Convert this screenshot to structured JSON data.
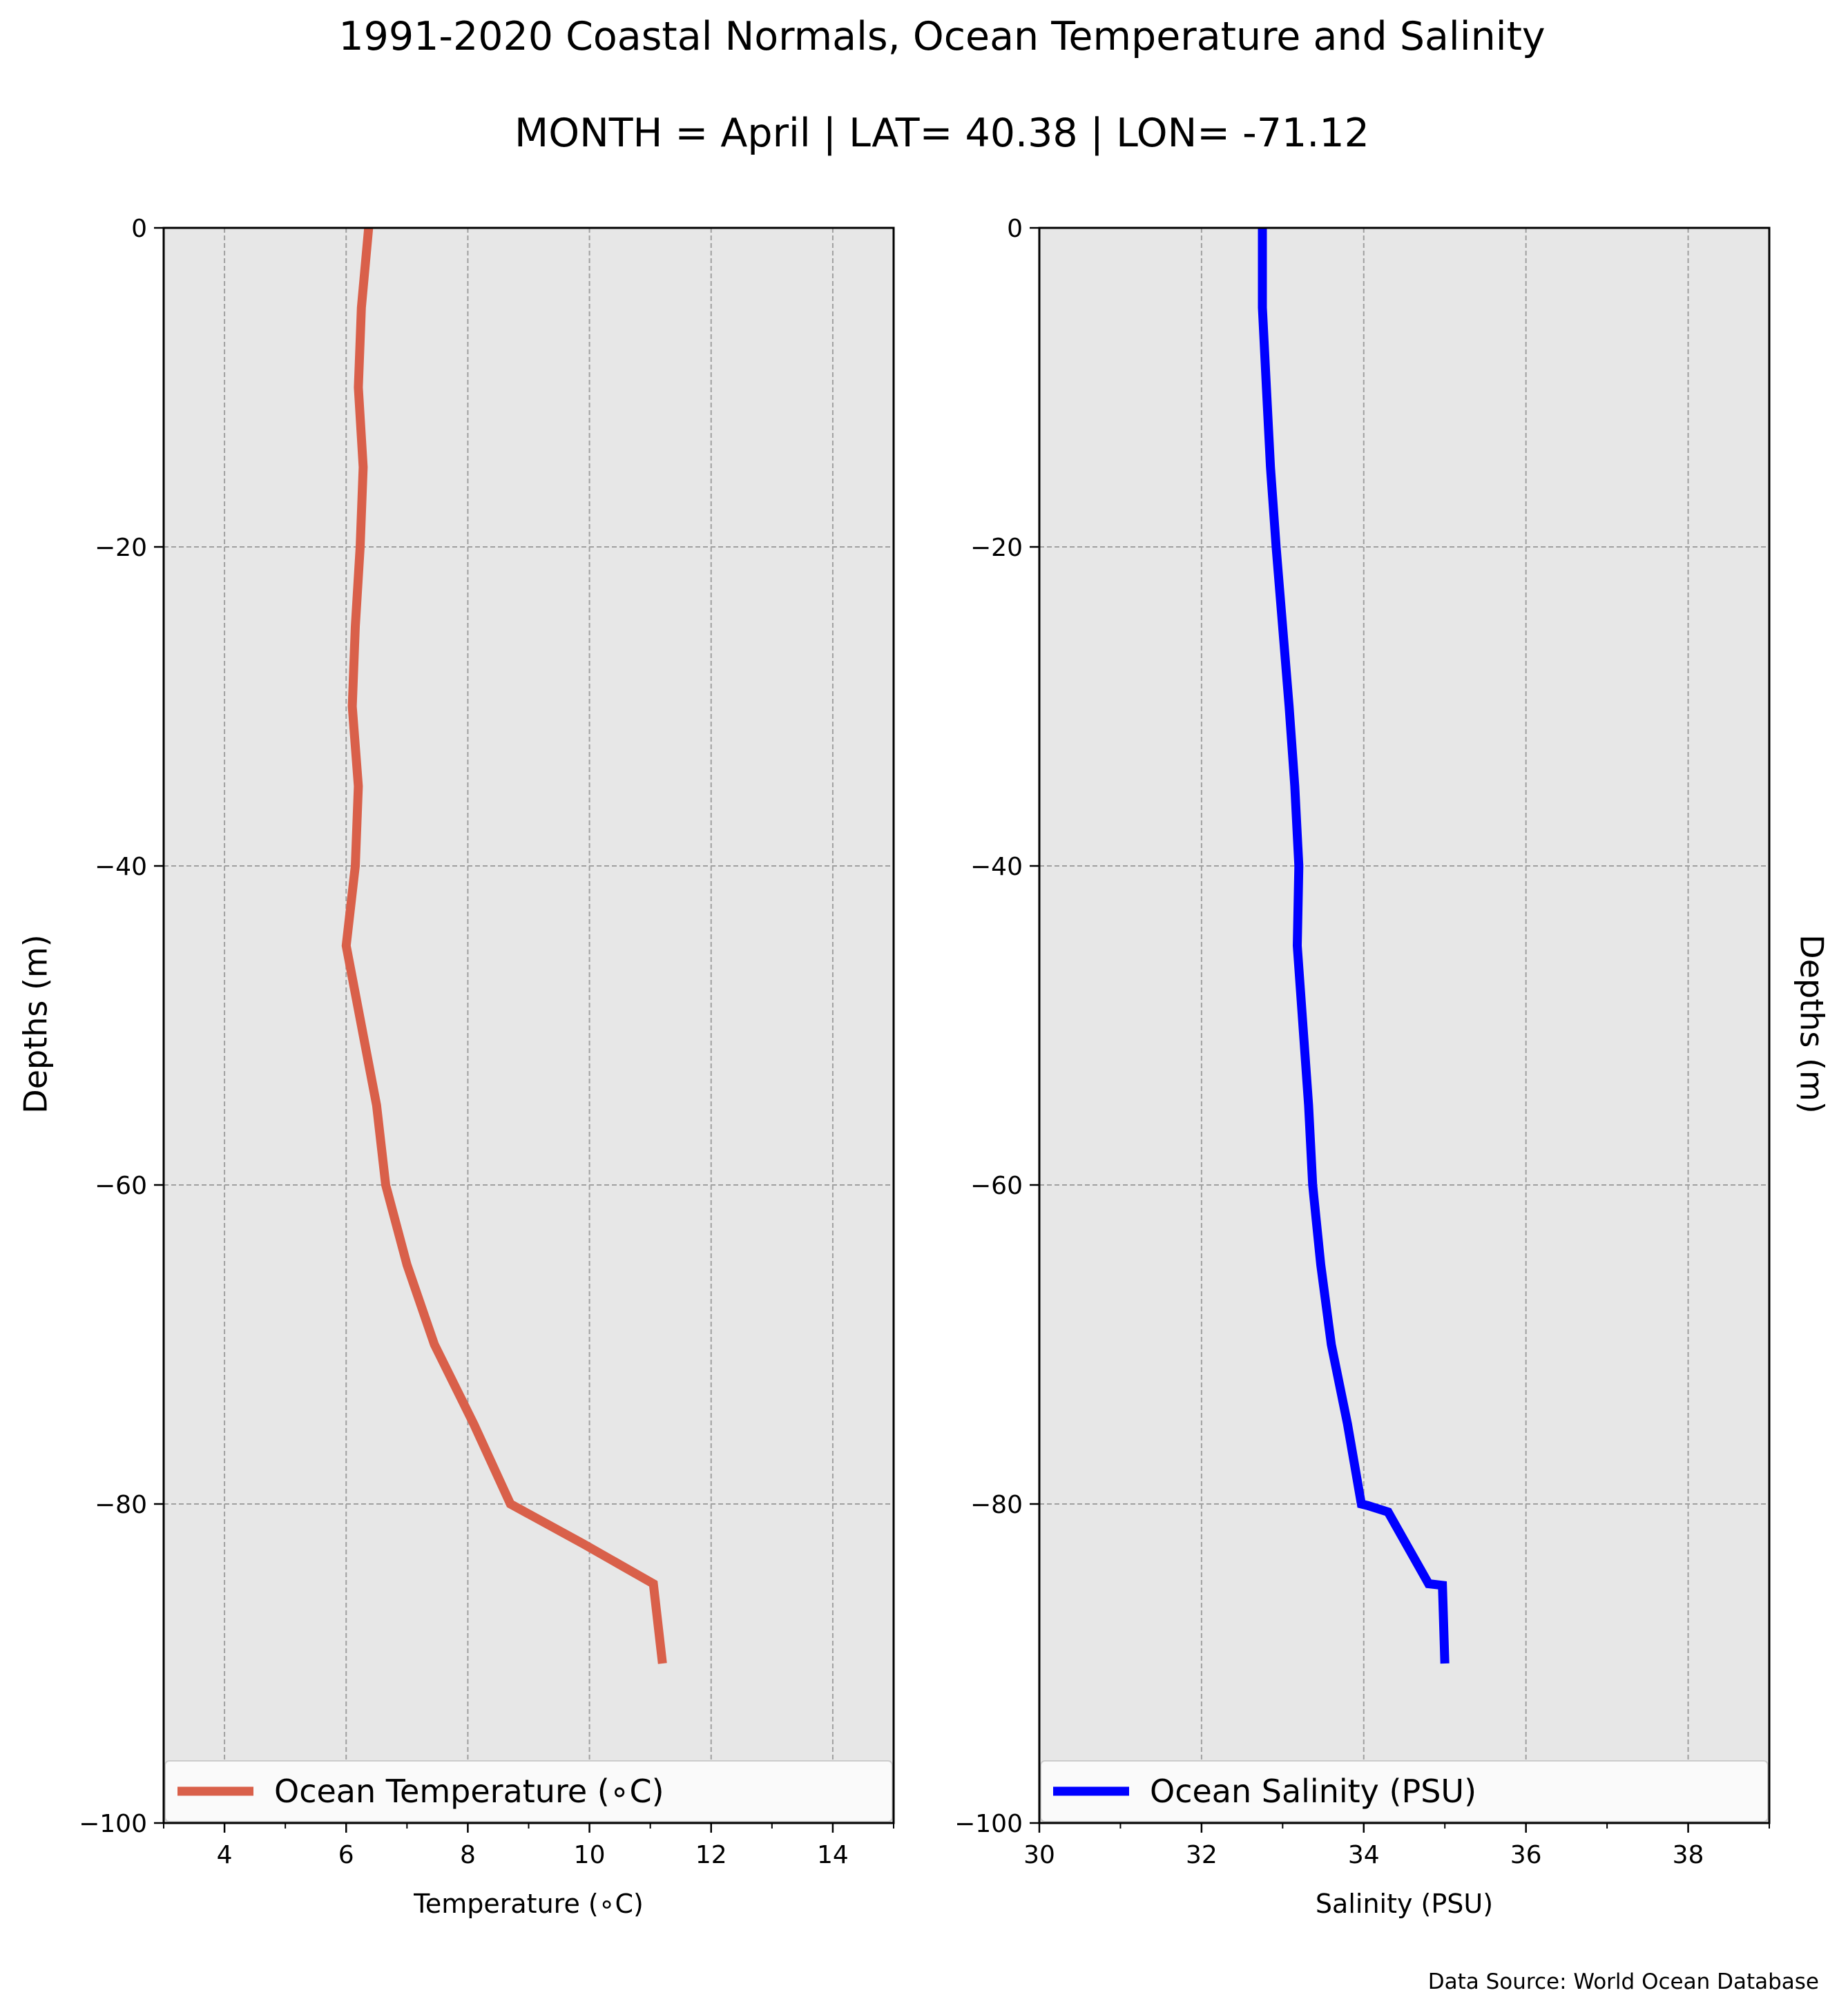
{
  "title": "1991-2020 Coastal Normals, Ocean Temperature and Salinity",
  "subtitle": "MONTH = April | LAT= 40.38 | LON= -71.12",
  "source_note": "Data Source: World Ocean Database",
  "colors": {
    "temperature": "#d9604a",
    "salinity": "#0000ff",
    "plot_bg": "#e7e7e7",
    "grid": "#a0a0a0"
  },
  "chart_data": [
    {
      "type": "line",
      "xlabel": "Temperature (∘C)",
      "ylabel": "Depths (m)",
      "xlim": [
        3,
        15
      ],
      "ylim": [
        -100,
        0
      ],
      "x_ticks": [
        4,
        6,
        8,
        10,
        12,
        14
      ],
      "x_tick_labels": [
        "4",
        "6",
        "8",
        "10",
        "12",
        "14"
      ],
      "x_minor_ticks": [
        3,
        5,
        7,
        9,
        11,
        13,
        15
      ],
      "y_ticks": [
        0,
        -20,
        -40,
        -60,
        -80,
        -100
      ],
      "y_tick_labels": [
        "0",
        "−20",
        "−40",
        "−60",
        "−80",
        "−100"
      ],
      "grid": true,
      "legend": "bottom",
      "series": [
        {
          "name": "Ocean Temperature (∘C)",
          "x": [
            6.37,
            6.25,
            6.2,
            6.28,
            6.23,
            6.15,
            6.1,
            6.2,
            6.15,
            6.0,
            6.5,
            6.65,
            7.0,
            7.45,
            8.1,
            8.7,
            9.9,
            11.05,
            11.2
          ],
          "y": [
            0,
            -5,
            -10,
            -15,
            -20,
            -25,
            -30,
            -35,
            -40,
            -45,
            -55,
            -60,
            -65,
            -70,
            -75,
            -80,
            -82.5,
            -85,
            -90
          ]
        }
      ]
    },
    {
      "type": "line",
      "xlabel": "Salinity (PSU)",
      "ylabel": "Depths (m)",
      "xlim": [
        30,
        39
      ],
      "ylim": [
        -100,
        0
      ],
      "x_ticks": [
        30,
        32,
        34,
        36,
        38
      ],
      "x_tick_labels": [
        "30",
        "32",
        "34",
        "36",
        "38"
      ],
      "x_minor_ticks": [
        31,
        33,
        35,
        37,
        39
      ],
      "y_ticks": [
        0,
        -20,
        -40,
        -60,
        -80,
        -100
      ],
      "y_tick_labels": [
        "0",
        "−20",
        "−40",
        "−60",
        "−80",
        "−100"
      ],
      "grid": true,
      "legend": "bottom",
      "series": [
        {
          "name": "Ocean Salinity (PSU)",
          "x": [
            32.75,
            32.75,
            32.8,
            32.85,
            32.92,
            33.0,
            33.08,
            33.15,
            33.2,
            33.18,
            33.32,
            33.37,
            33.47,
            33.6,
            33.8,
            33.97,
            34.05,
            34.3,
            34.8,
            34.97,
            35.0
          ],
          "y": [
            0,
            -5,
            -10,
            -15,
            -20,
            -25,
            -30,
            -35,
            -40,
            -45,
            -55,
            -60,
            -65,
            -70,
            -75,
            -80,
            -80.1,
            -80.5,
            -85,
            -85.1,
            -90
          ]
        }
      ]
    }
  ]
}
